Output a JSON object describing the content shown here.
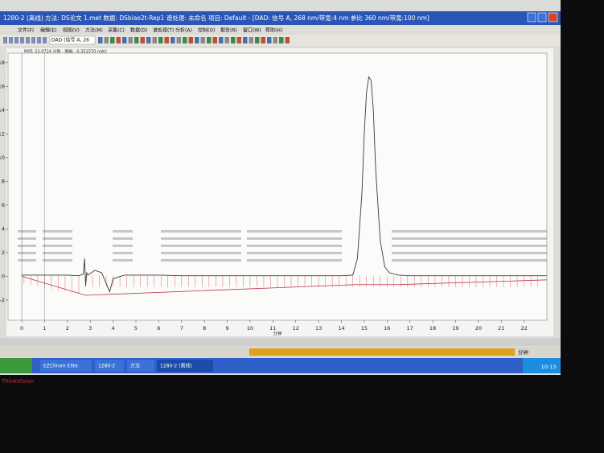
{
  "window": {
    "title": "1280-2 (离线)   方法: DS论文 1.met   数据: DSbiao2t-Rep1   谱处理: 未命名   项目: Default - [DAD: 信号 A, 268 nm/带宽:4 nm 参比 360 nm/带宽:100 nm]",
    "menu": [
      "文件(F)",
      "编辑(E)",
      "视图(V)",
      "方法(M)",
      "采集(C)",
      "数据(D)",
      "谱处理(T)",
      "分析(A)",
      "控制(O)",
      "报告(R)",
      "窗口(W)",
      "帮助(H)"
    ],
    "toolbar_signal": "DAD (信号 A, 26",
    "cursor_readout": "时间: 23.0724 分钟 · 振幅: -0.351570 mAU",
    "status_unit": "分钟"
  },
  "taskbar": {
    "items": [
      "EZChrom Elite",
      "1280-2",
      "方法",
      "1280-2 (离线)"
    ],
    "clock": "10:13"
  },
  "monitor": {
    "brand": "ThinkVision"
  },
  "chart_data": {
    "type": "line",
    "x_label": "分钟",
    "x": [
      0,
      0.5,
      1,
      1.5,
      2,
      2.5,
      2.7,
      2.75,
      2.8,
      2.85,
      2.9,
      3.2,
      3.5,
      3.7,
      3.85,
      4,
      4.5,
      5,
      6,
      7,
      8,
      9,
      10,
      11,
      12,
      13,
      14,
      14.5,
      14.7,
      14.9,
      15.0,
      15.1,
      15.2,
      15.3,
      15.4,
      15.5,
      15.7,
      15.9,
      16.1,
      16.5,
      17,
      18,
      19,
      20,
      21,
      22,
      23
    ],
    "series": [
      {
        "color": "#3a3a3a",
        "values": [
          0.1,
          0.1,
          0.1,
          0.1,
          0.1,
          0.05,
          0.2,
          1.5,
          -0.8,
          0.3,
          0.1,
          0.5,
          0.3,
          -0.6,
          -1.3,
          -0.2,
          0.1,
          0.1,
          0.1,
          0.05,
          0.05,
          0.05,
          0.05,
          0.05,
          0.05,
          0.05,
          0.05,
          0.1,
          1.5,
          7,
          12,
          15.5,
          16.8,
          16.5,
          14,
          9,
          3,
          0.8,
          0.3,
          0.1,
          0.05,
          0.05,
          0.05,
          0.05,
          0.05,
          0.05,
          0.05
        ]
      }
    ],
    "xlim": [
      -0.6,
      23
    ],
    "ylim": [
      -3.7,
      18.8
    ],
    "xticks": [
      0,
      1,
      2,
      3,
      4,
      5,
      6,
      7,
      8,
      9,
      10,
      11,
      12,
      13,
      14,
      15,
      16,
      17,
      18,
      19,
      20,
      21,
      22
    ],
    "yticks": [
      -2,
      0,
      2,
      4,
      6,
      8,
      10,
      12,
      14,
      16,
      18
    ]
  }
}
